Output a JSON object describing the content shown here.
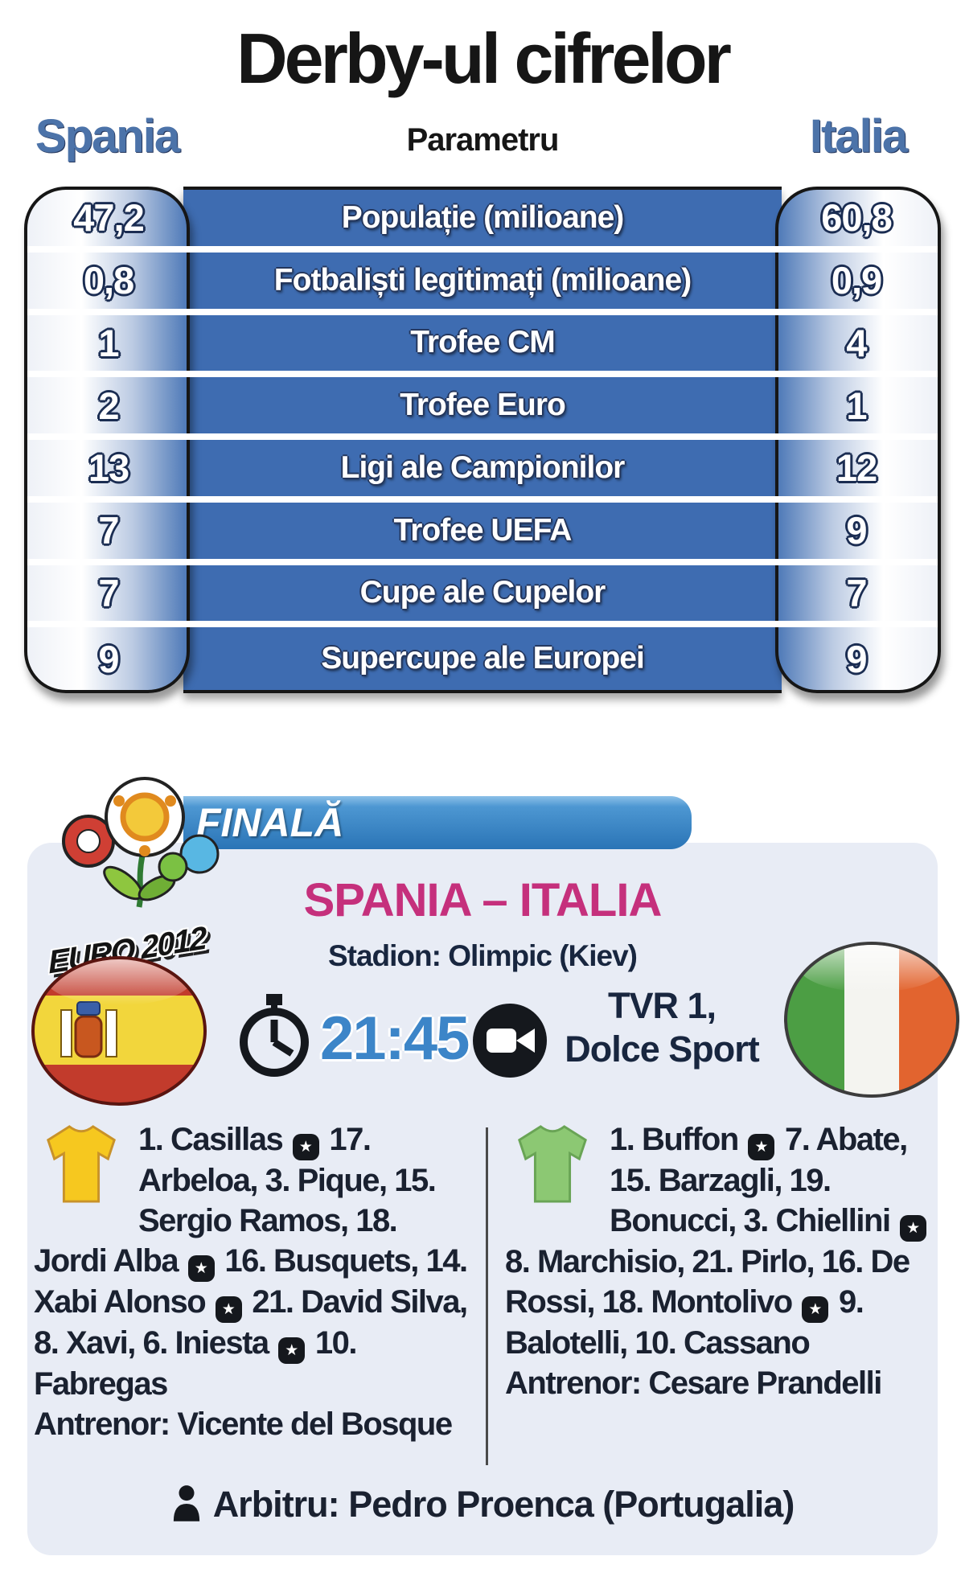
{
  "title": "Derby-ul cifrelor",
  "table": {
    "headers": {
      "left": "Spania",
      "center": "Parametru",
      "right": "Italia"
    },
    "rows": [
      {
        "spania": "47,2",
        "parametru": "Populație (milioane)",
        "italia": "60,8"
      },
      {
        "spania": "0,8",
        "parametru": "Fotbaliști legitimați (milioane)",
        "italia": "0,9"
      },
      {
        "spania": "1",
        "parametru": "Trofee CM",
        "italia": "4"
      },
      {
        "spania": "2",
        "parametru": "Trofee Euro",
        "italia": "1"
      },
      {
        "spania": "13",
        "parametru": "Ligi ale Campionilor",
        "italia": "12"
      },
      {
        "spania": "7",
        "parametru": "Trofee UEFA",
        "italia": "9"
      },
      {
        "spania": "7",
        "parametru": "Cupe ale Cupelor",
        "italia": "7"
      },
      {
        "spania": "9",
        "parametru": "Supercupe ale Europei",
        "italia": "9"
      }
    ]
  },
  "finala": {
    "badge": "FINALĂ",
    "logo_text": "EURO 2012",
    "matchup": "SPANIA – ITALIA",
    "stadium": "Stadion: Olimpic (Kiev)",
    "kickoff": "21:45",
    "tv_line1": "TVR 1,",
    "tv_line2": "Dolce Sport",
    "lineups": [
      {
        "team": "Spania",
        "shirt_color": "#f6c81f",
        "shirt_stroke": "#c8922a",
        "players": "1. Casillas ⚽ 17. Arbeloa, 3. Pique, 15. Sergio Ramos, 18. Jordi Alba ⚽ 16. Busquets, 14. Xabi Alonso ⚽ 21. David Silva, 8. Xavi, 6. Iniesta ⚽ 10. Fabregas",
        "coach_label": "Antrenor:",
        "coach": "Vicente del Bosque"
      },
      {
        "team": "Italia",
        "shirt_color": "#8cc873",
        "shirt_stroke": "#69a455",
        "players": "1. Buffon ⚽ 7. Abate, 15. Barzagli, 19. Bonucci, 3. Chiellini ⚽ 8. Marchisio, 21. Pirlo, 16. De Rossi, 18. Montolivo ⚽ 9. Balotelli, 10. Cassano",
        "coach_label": "Antrenor:",
        "coach": "Cesare Prandelli"
      }
    ],
    "referee": {
      "label": "Arbitru:",
      "name": "Pedro Proenca (Portugalia)"
    }
  },
  "colors": {
    "table_blue": "#3e6cb1",
    "bar_blue": "#2a74b6",
    "panel_bg": "#e8ecf5",
    "matchup_magenta": "#c5307c",
    "kickoff_blue": "#3c85c8",
    "navy_text": "#18263f"
  }
}
